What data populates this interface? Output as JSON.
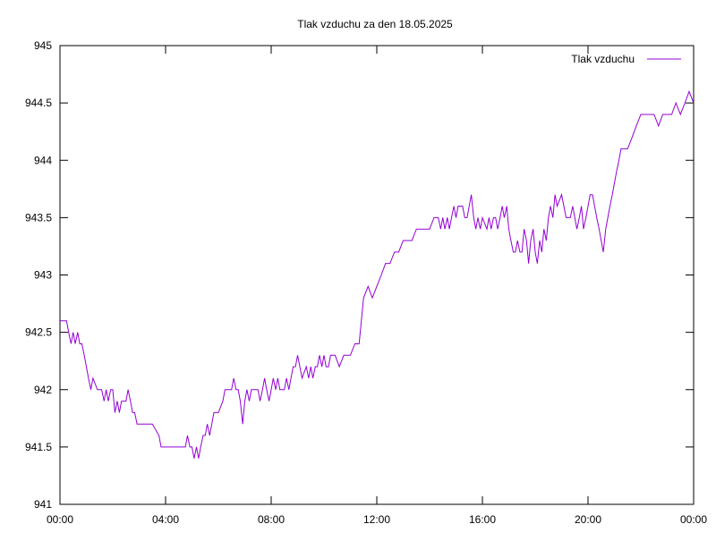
{
  "chart_data": {
    "type": "line",
    "title": "Tlak vzduchu za den 18.05.2025",
    "xlabel": "",
    "ylabel": "",
    "xlim": [
      0,
      24
    ],
    "ylim": [
      941,
      945
    ],
    "x_ticks": [
      "00:00",
      "04:00",
      "08:00",
      "12:00",
      "16:00",
      "20:00",
      "00:00"
    ],
    "y_ticks": [
      "941",
      "941.5",
      "942",
      "942.5",
      "943",
      "943.5",
      "944",
      "944.5",
      "945"
    ],
    "legend_position": "top-right",
    "grid": false,
    "series": [
      {
        "name": "Tlak vzduchu",
        "color": "#9400d3",
        "x": [
          0.0,
          0.25,
          0.33,
          0.42,
          0.5,
          0.58,
          0.67,
          0.75,
          0.83,
          0.92,
          1.0,
          1.08,
          1.17,
          1.25,
          1.42,
          1.58,
          1.67,
          1.75,
          1.83,
          1.92,
          2.0,
          2.08,
          2.17,
          2.25,
          2.33,
          2.42,
          2.5,
          2.58,
          2.67,
          2.75,
          2.83,
          2.92,
          3.0,
          3.25,
          3.5,
          3.75,
          3.83,
          3.92,
          4.0,
          4.25,
          4.5,
          4.75,
          4.83,
          4.92,
          5.0,
          5.08,
          5.17,
          5.25,
          5.33,
          5.42,
          5.5,
          5.58,
          5.67,
          5.75,
          5.83,
          6.0,
          6.17,
          6.25,
          6.33,
          6.42,
          6.5,
          6.58,
          6.67,
          6.75,
          6.83,
          6.92,
          7.0,
          7.08,
          7.17,
          7.25,
          7.33,
          7.42,
          7.5,
          7.58,
          7.67,
          7.75,
          7.83,
          7.92,
          8.0,
          8.08,
          8.17,
          8.25,
          8.33,
          8.42,
          8.5,
          8.58,
          8.67,
          8.75,
          8.83,
          8.92,
          9.0,
          9.17,
          9.33,
          9.42,
          9.5,
          9.58,
          9.67,
          9.75,
          9.83,
          9.92,
          10.0,
          10.08,
          10.17,
          10.25,
          10.42,
          10.58,
          10.75,
          11.0,
          11.17,
          11.33,
          11.5,
          11.67,
          11.83,
          12.0,
          12.17,
          12.33,
          12.5,
          12.67,
          12.83,
          13.0,
          13.17,
          13.33,
          13.5,
          13.67,
          13.83,
          14.0,
          14.17,
          14.33,
          14.42,
          14.5,
          14.58,
          14.67,
          14.75,
          14.83,
          14.92,
          15.0,
          15.08,
          15.17,
          15.25,
          15.33,
          15.42,
          15.5,
          15.58,
          15.67,
          15.75,
          15.83,
          15.92,
          16.0,
          16.17,
          16.25,
          16.33,
          16.42,
          16.5,
          16.58,
          16.67,
          16.75,
          16.83,
          16.92,
          17.0,
          17.08,
          17.17,
          17.25,
          17.33,
          17.42,
          17.5,
          17.58,
          17.67,
          17.75,
          17.83,
          17.92,
          18.0,
          18.08,
          18.17,
          18.25,
          18.33,
          18.42,
          18.5,
          18.58,
          18.67,
          18.75,
          18.83,
          19.0,
          19.17,
          19.33,
          19.42,
          19.5,
          19.58,
          19.67,
          19.75,
          19.83,
          19.92,
          20.0,
          20.08,
          20.17,
          20.25,
          20.33,
          20.42,
          20.5,
          20.58,
          20.67,
          20.75,
          20.83,
          20.92,
          21.0,
          21.08,
          21.17,
          21.25,
          21.33,
          21.5,
          21.67,
          21.83,
          22.0,
          22.17,
          22.33,
          22.5,
          22.67,
          22.83,
          23.0,
          23.17,
          23.33,
          23.5,
          23.67,
          23.83,
          24.0
        ],
        "y": [
          942.6,
          942.6,
          942.5,
          942.4,
          942.5,
          942.4,
          942.5,
          942.4,
          942.4,
          942.3,
          942.2,
          942.1,
          942.0,
          942.1,
          942.0,
          942.0,
          941.9,
          942.0,
          941.9,
          942.0,
          942.0,
          941.8,
          941.9,
          941.8,
          941.9,
          941.9,
          941.9,
          942.0,
          941.9,
          941.8,
          941.8,
          941.7,
          941.7,
          941.7,
          941.7,
          941.6,
          941.5,
          941.5,
          941.5,
          941.5,
          941.5,
          941.5,
          941.6,
          941.5,
          941.5,
          941.4,
          941.5,
          941.4,
          941.5,
          941.6,
          941.6,
          941.7,
          941.6,
          941.7,
          941.8,
          941.8,
          941.9,
          942.0,
          942.0,
          942.0,
          942.0,
          942.1,
          942.0,
          942.0,
          941.9,
          941.7,
          941.9,
          942.0,
          941.9,
          942.0,
          942.0,
          942.0,
          942.0,
          941.9,
          942.0,
          942.1,
          942.0,
          941.9,
          942.0,
          942.1,
          942.0,
          942.1,
          942.0,
          942.0,
          942.0,
          942.1,
          942.0,
          942.1,
          942.2,
          942.2,
          942.3,
          942.1,
          942.2,
          942.1,
          942.2,
          942.1,
          942.2,
          942.2,
          942.3,
          942.2,
          942.3,
          942.2,
          942.2,
          942.3,
          942.3,
          942.2,
          942.3,
          942.3,
          942.4,
          942.4,
          942.8,
          942.9,
          942.8,
          942.9,
          943.0,
          943.1,
          943.1,
          943.2,
          943.2,
          943.3,
          943.3,
          943.3,
          943.4,
          943.4,
          943.4,
          943.4,
          943.5,
          943.5,
          943.4,
          943.5,
          943.4,
          943.5,
          943.4,
          943.5,
          943.6,
          943.5,
          943.6,
          943.6,
          943.6,
          943.5,
          943.5,
          943.6,
          943.7,
          943.5,
          943.4,
          943.5,
          943.4,
          943.5,
          943.4,
          943.5,
          943.4,
          943.5,
          943.5,
          943.4,
          943.5,
          943.6,
          943.5,
          943.6,
          943.4,
          943.3,
          943.2,
          943.2,
          943.3,
          943.2,
          943.2,
          943.4,
          943.3,
          943.1,
          943.3,
          943.4,
          943.2,
          943.1,
          943.3,
          943.2,
          943.4,
          943.3,
          943.5,
          943.6,
          943.5,
          943.7,
          943.6,
          943.7,
          943.5,
          943.5,
          943.6,
          943.5,
          943.4,
          943.5,
          943.6,
          943.4,
          943.5,
          943.6,
          943.7,
          943.7,
          943.6,
          943.5,
          943.4,
          943.3,
          943.2,
          943.4,
          943.5,
          943.6,
          943.7,
          943.8,
          943.9,
          944.0,
          944.1,
          944.1,
          944.1,
          944.2,
          944.3,
          944.4,
          944.4,
          944.4,
          944.4,
          944.3,
          944.4,
          944.4,
          944.4,
          944.5,
          944.4,
          944.5,
          944.6,
          944.5
        ]
      }
    ]
  }
}
